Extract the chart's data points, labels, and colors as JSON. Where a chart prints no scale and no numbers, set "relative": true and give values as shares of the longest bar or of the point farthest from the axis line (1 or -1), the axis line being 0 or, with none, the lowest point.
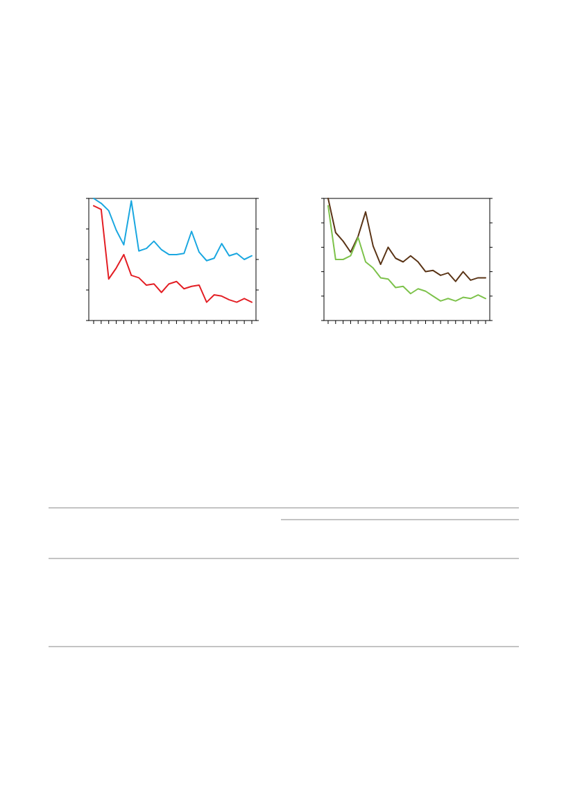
{
  "chart_data": [
    {
      "type": "line",
      "relative": true,
      "categories": [
        null,
        null,
        null,
        null,
        null,
        null,
        null,
        null,
        null,
        null,
        null,
        null,
        null,
        null,
        null,
        null,
        null,
        null,
        null,
        null,
        null,
        null
      ],
      "series": [
        {
          "color": "#1aa7e0",
          "values": [
            1,
            0.96,
            0.9,
            0.74,
            0.62,
            0.98,
            0.57,
            0.59,
            0.65,
            0.58,
            0.54,
            0.54,
            0.55,
            0.73,
            0.56,
            0.49,
            0.51,
            0.63,
            0.53,
            0.55,
            0.5,
            0.53
          ]
        },
        {
          "color": "#e31e24",
          "values": [
            0.94,
            0.91,
            0.34,
            0.43,
            0.54,
            0.37,
            0.35,
            0.29,
            0.3,
            0.23,
            0.3,
            0.32,
            0.26,
            0.28,
            0.29,
            0.15,
            0.21,
            0.2,
            0.17,
            0.15,
            0.18,
            0.15
          ]
        }
      ]
    },
    {
      "type": "line",
      "relative": true,
      "categories": [
        null,
        null,
        null,
        null,
        null,
        null,
        null,
        null,
        null,
        null,
        null,
        null,
        null,
        null,
        null,
        null,
        null,
        null,
        null,
        null,
        null,
        null
      ],
      "series": [
        {
          "color": "#5a3416",
          "values": [
            1,
            0.72,
            0.65,
            0.56,
            0.69,
            0.89,
            0.61,
            0.46,
            0.6,
            0.51,
            0.48,
            0.53,
            0.48,
            0.4,
            0.41,
            0.37,
            0.39,
            0.32,
            0.4,
            0.33,
            0.35,
            0.35
          ]
        },
        {
          "color": "#7dc24b",
          "values": [
            0.94,
            0.5,
            0.5,
            0.53,
            0.68,
            0.48,
            0.43,
            0.35,
            0.34,
            0.27,
            0.28,
            0.22,
            0.26,
            0.24,
            0.2,
            0.16,
            0.18,
            0.16,
            0.19,
            0.18,
            0.21,
            0.18
          ]
        }
      ]
    }
  ]
}
